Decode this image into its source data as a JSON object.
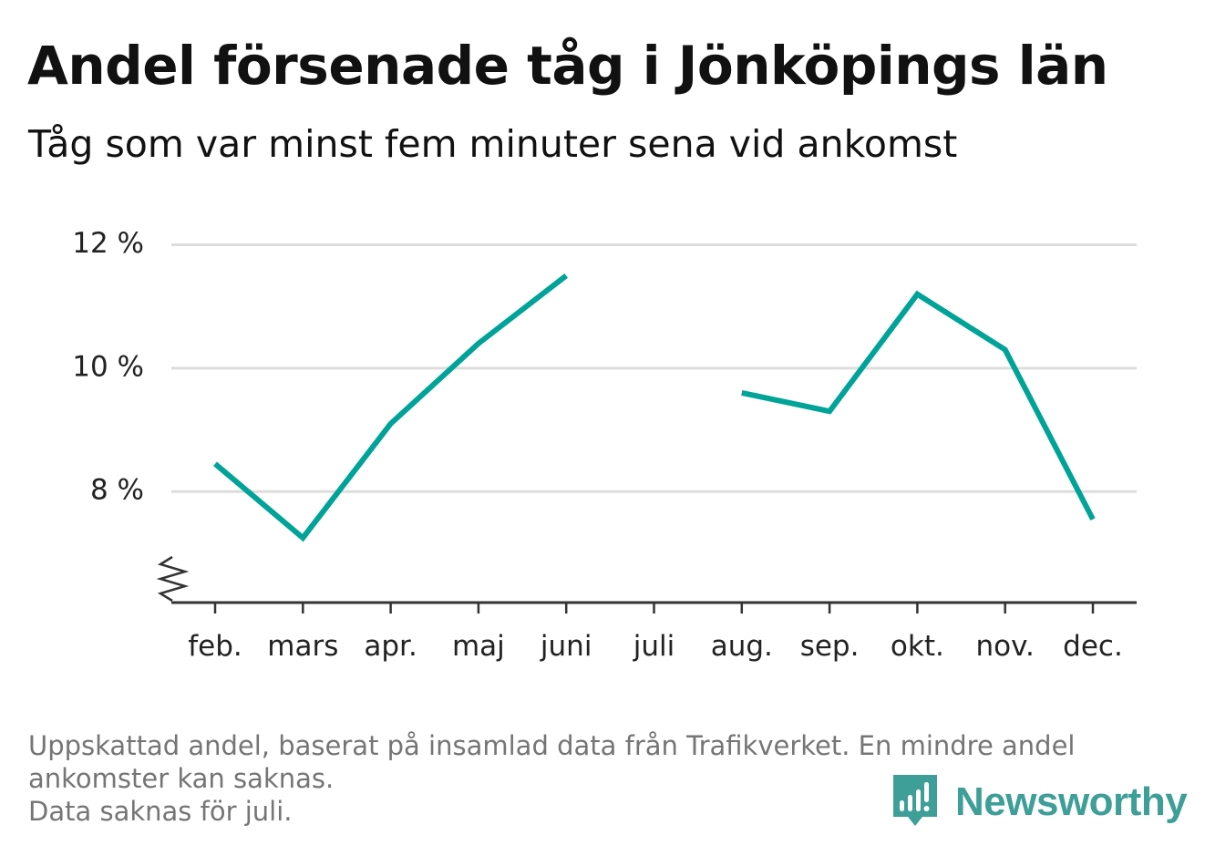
{
  "title": "Andel försenade tåg i Jönköpings län",
  "subtitle": "Tåg som var minst fem minuter sena vid ankomst",
  "footer": {
    "line1": "Uppskattad andel, baserat på insamlad data från Trafikverket. En mindre andel",
    "line2": "ankomster kan saknas.",
    "line3": "Data saknas för juli."
  },
  "brand": {
    "name": "Newsworthy",
    "icon": "chart-bars-icon",
    "color": "#3e9e98"
  },
  "chart_data": {
    "type": "line",
    "categories": [
      "feb.",
      "mars",
      "apr.",
      "maj",
      "juni",
      "juli",
      "aug.",
      "sep.",
      "okt.",
      "nov.",
      "dec."
    ],
    "series": [
      {
        "values": [
          8.45,
          7.25,
          9.1,
          10.4,
          11.5,
          null,
          9.6,
          9.3,
          11.2,
          10.3,
          7.55
        ],
        "color": "#00a398"
      }
    ],
    "yticks": [
      8,
      10,
      12
    ],
    "ytick_labels": [
      "8 %",
      "10 %",
      "12 %"
    ],
    "ylim": [
      6.2,
      12.2
    ],
    "axis_break": true,
    "grid": true,
    "legend": "none"
  }
}
